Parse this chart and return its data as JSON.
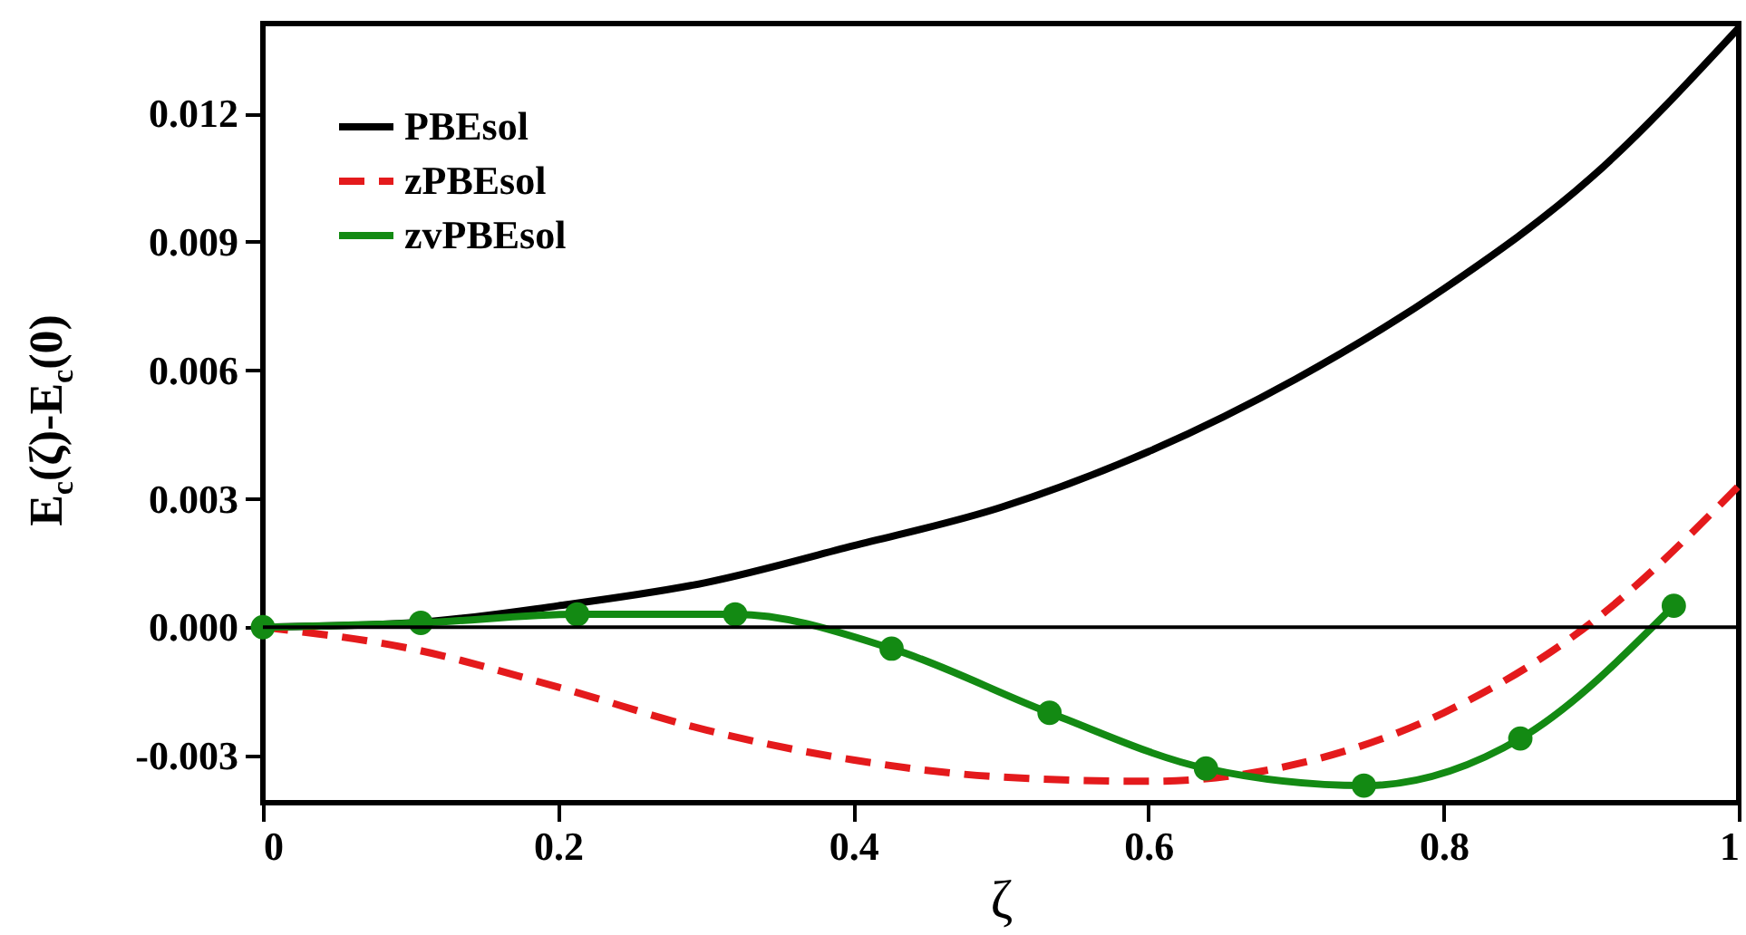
{
  "chart_data": {
    "type": "line",
    "xlabel": "ζ",
    "ylabel": "E$_{c}$(ζ)-E$_{c}$(0)",
    "xlim": [
      0,
      1
    ],
    "xticks": [
      0,
      0.2,
      0.4,
      0.6,
      0.8,
      1
    ],
    "ylim": [
      -0.0041,
      0.0141
    ],
    "yticks": [
      -0.003,
      {
        "value": 0,
        "label": "0.000"
      },
      0.003,
      0.006,
      0.009,
      0.012
    ],
    "grid": false,
    "legend": "top left",
    "ref_lines": [
      {
        "axis": "y",
        "value": 0,
        "color": "#000000"
      }
    ],
    "series": [
      {
        "name": "PBEsol",
        "color": "#000000",
        "line_style": "solid",
        "marker": "none",
        "x": [
          0,
          0.1,
          0.2,
          0.3,
          0.4,
          0.5,
          0.6,
          0.7,
          0.8,
          0.9,
          1
        ],
        "values": [
          0,
          0.0001,
          0.0005,
          0.00104,
          0.0019,
          0.0028,
          0.0041,
          0.0058,
          0.0079,
          0.0105,
          0.014
        ]
      },
      {
        "name": "zPBEsol",
        "color": "#e41a1c",
        "line_style": "dashed",
        "marker": "none",
        "x": [
          0,
          0.1,
          0.2,
          0.3,
          0.4,
          0.5,
          0.6,
          0.7,
          0.8,
          0.9,
          1
        ],
        "values": [
          0,
          -0.0005,
          -0.0014,
          -0.0024,
          -0.0031,
          -0.0035,
          -0.0036,
          -0.0032,
          -0.002,
          0.0001,
          0.0033
        ]
      },
      {
        "name": "zvPBEsol",
        "color": "#138a13",
        "line_style": "solid",
        "marker": "circle",
        "x": [
          0,
          0.107,
          0.213,
          0.32,
          0.426,
          0.533,
          0.639,
          0.746,
          0.852,
          0.956
        ],
        "values": [
          0,
          0.0001,
          0.0003,
          0.0003,
          -0.0005,
          -0.002,
          -0.0033,
          -0.0037,
          -0.0026,
          0.0005
        ]
      }
    ]
  }
}
